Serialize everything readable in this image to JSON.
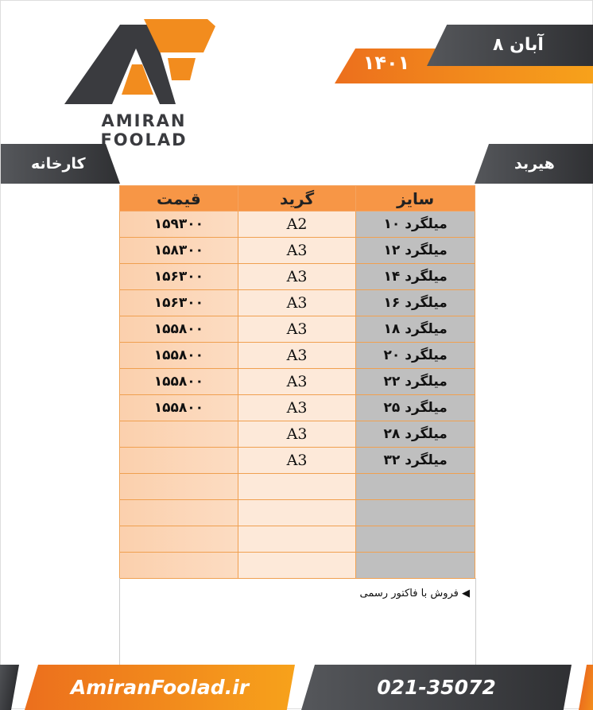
{
  "logo": {
    "text": "AMIRAN FOOLAD",
    "colors": {
      "dark": "#3a3b3f",
      "orange": "#f28c1e"
    }
  },
  "date": {
    "day_month": "۸ آبان",
    "year": "۱۴۰۱"
  },
  "labels": {
    "right": "هیربد",
    "left": "کارخانه"
  },
  "table": {
    "headers": {
      "size": "سایز",
      "grade": "گرید",
      "price": "قیمت"
    },
    "rows": [
      {
        "size": "میلگرد ۱۰",
        "grade": "A2",
        "price": "۱۵۹۳۰۰"
      },
      {
        "size": "میلگرد ۱۲",
        "grade": "A3",
        "price": "۱۵۸۳۰۰"
      },
      {
        "size": "میلگرد ۱۴",
        "grade": "A3",
        "price": "۱۵۶۳۰۰"
      },
      {
        "size": "میلگرد ۱۶",
        "grade": "A3",
        "price": "۱۵۶۳۰۰"
      },
      {
        "size": "میلگرد ۱۸",
        "grade": "A3",
        "price": "۱۵۵۸۰۰"
      },
      {
        "size": "میلگرد ۲۰",
        "grade": "A3",
        "price": "۱۵۵۸۰۰"
      },
      {
        "size": "میلگرد ۲۲",
        "grade": "A3",
        "price": "۱۵۵۸۰۰"
      },
      {
        "size": "میلگرد ۲۵",
        "grade": "A3",
        "price": "۱۵۵۸۰۰"
      },
      {
        "size": "میلگرد ۲۸",
        "grade": "A3",
        "price": ""
      },
      {
        "size": "میلگرد ۳۲",
        "grade": "A3",
        "price": ""
      },
      {
        "size": "",
        "grade": "",
        "price": ""
      },
      {
        "size": "",
        "grade": "",
        "price": ""
      },
      {
        "size": "",
        "grade": "",
        "price": ""
      },
      {
        "size": "",
        "grade": "",
        "price": ""
      }
    ]
  },
  "note": {
    "icon": "triangle-left-icon",
    "text": "فروش با فاکتور رسمی"
  },
  "footer": {
    "website": "AmiranFoolad.ir",
    "phone": "021-35072"
  }
}
